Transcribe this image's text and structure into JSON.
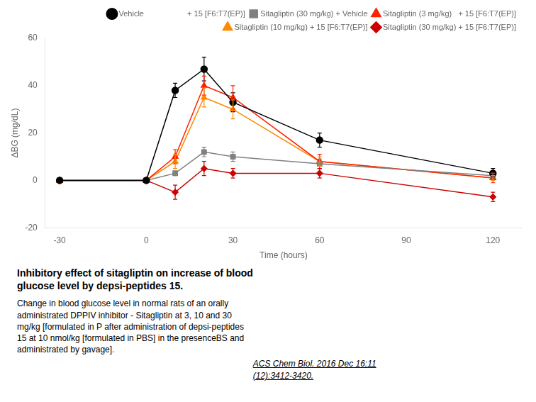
{
  "chart_data": {
    "type": "line",
    "title": "Inhibitory effect of sitagliptin on increase of blood\nglucose level by depsi-peptides 15.",
    "annotations": [
      "Change in blood glucose level in normal rats of an orally\nadministrated DPPIV inhibitor - Sitagliptin at 3, 10 and 30\nmg/kg [formulated in P after administration of depsi-peptides\n15 at 10 nmol/kg [formulated in PBS] in the presenceBS and\nadministrated by gavage]. ",
      "ACS Chem Biol. 2016 Dec 16;11\n(12):3412-3420."
    ],
    "x": [
      -30,
      0,
      10,
      20,
      30,
      60,
      120
    ],
    "series": [
      {
        "name": "Vehicle                    + 15 [F6:T7(EP)]",
        "color": "#000000",
        "marker": "circle",
        "values": [
          0,
          0,
          38,
          47,
          33,
          17,
          3
        ],
        "errors": [
          0,
          0,
          3,
          5,
          4,
          3,
          2
        ]
      },
      {
        "name": "Sitagliptin (30 mg/kg) + Vehicle",
        "color": "#808080",
        "marker": "square",
        "values": [
          0,
          0,
          3,
          12,
          10,
          7,
          2
        ],
        "errors": [
          0,
          0,
          1,
          2,
          2,
          2,
          1
        ]
      },
      {
        "name": "Sitagliptin (3 mg/kg)   + 15 [F6:T7(EP)]",
        "color": "#ff2200",
        "marker": "triangle",
        "values": [
          0,
          0,
          10,
          40,
          35,
          8,
          1
        ],
        "errors": [
          0,
          0,
          3,
          4,
          5,
          3,
          2
        ]
      },
      {
        "name": "Sitagliptin (10 mg/kg) + 15 [F6:T7(EP)]",
        "color": "#ff8800",
        "marker": "triangle",
        "values": [
          0,
          0,
          8,
          35,
          30,
          8,
          1
        ],
        "errors": [
          0,
          0,
          3,
          4,
          4,
          2,
          1
        ]
      },
      {
        "name": "Sitagliptin (30 mg/kg) + 15 [F6:T7(EP)]",
        "color": "#cc0000",
        "marker": "diamond",
        "values": [
          0,
          0,
          -5,
          5,
          3,
          3,
          -7
        ],
        "errors": [
          0,
          0,
          3,
          3,
          2,
          2,
          2
        ]
      }
    ],
    "xlabel": "Time (hours)",
    "ylabel": "ΔBG (mg/dL)",
    "xlim": [
      -35,
      130
    ],
    "ylim": [
      -20,
      60
    ],
    "xticks": [
      -30,
      0,
      30,
      60,
      90,
      120
    ],
    "yticks": [
      -20,
      0,
      20,
      40,
      60
    ],
    "grid": false,
    "legend": "upper right"
  }
}
